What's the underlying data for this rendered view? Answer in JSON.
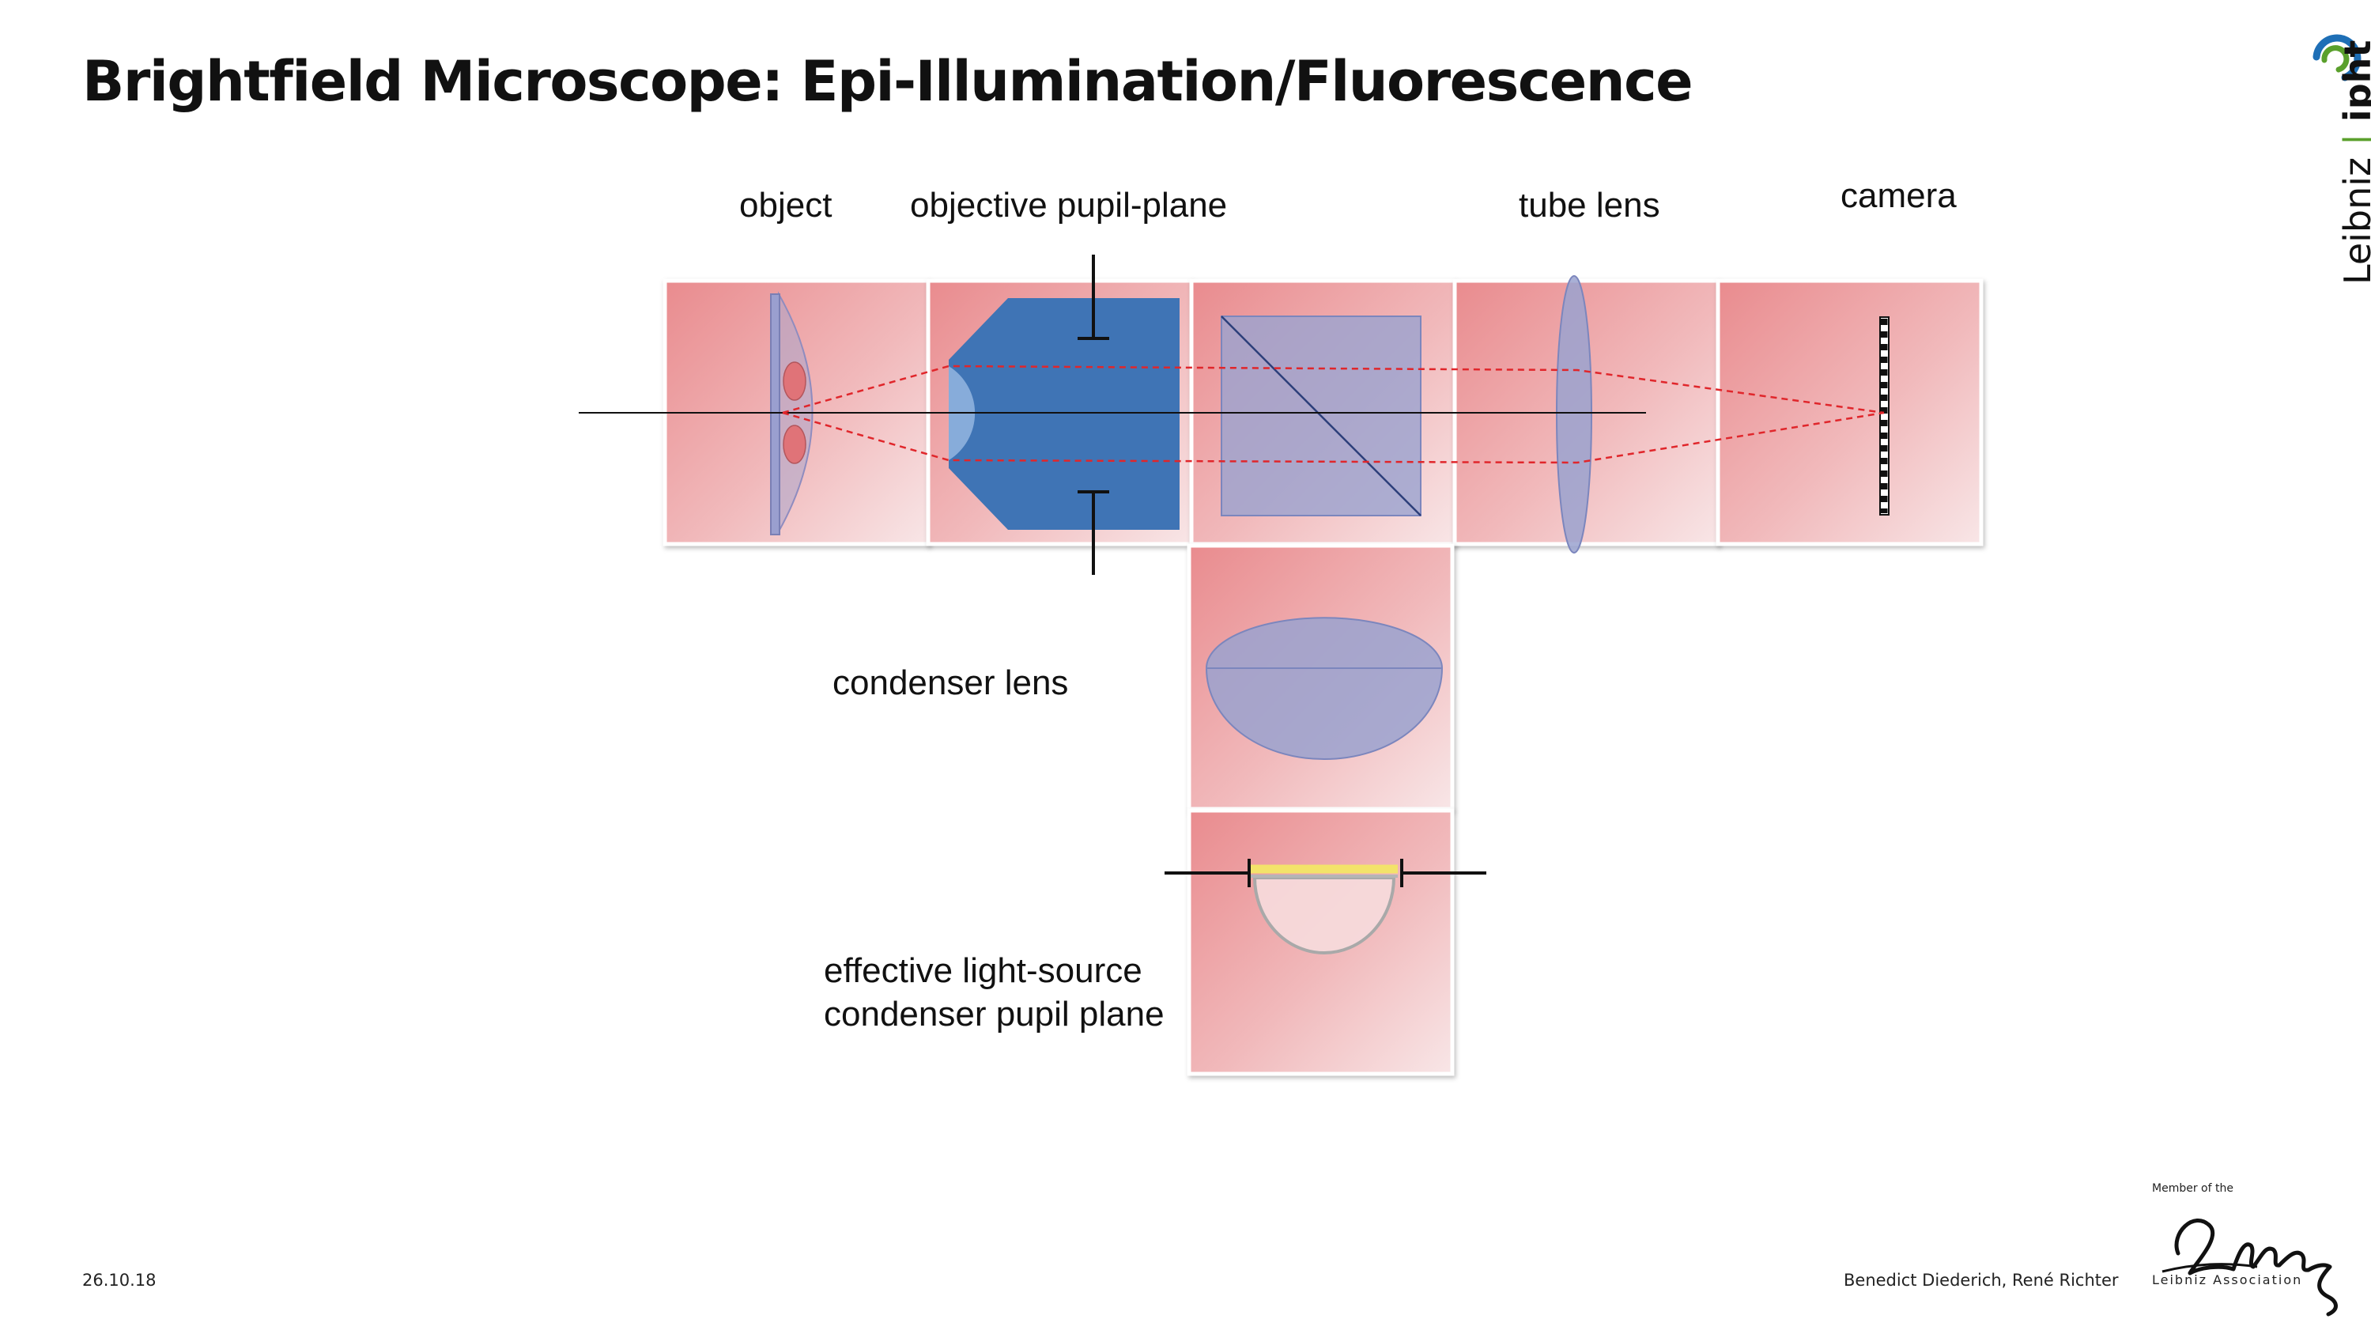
{
  "slide": {
    "title": "Brightfield Microscope: Epi-Illumination/Fluorescence",
    "date": "26.10.18",
    "authors": "Benedict Diederich, René Richter"
  },
  "labels": {
    "object": "object",
    "objective_pupil_plane": "objective pupil-plane",
    "tube_lens": "tube lens",
    "camera": "camera",
    "condenser_lens": "condenser lens",
    "light_source_line1": "effective light-source",
    "light_source_line2": "condenser pupil plane"
  },
  "logos": {
    "ipht_word1": "Leibniz",
    "ipht_separator": "|",
    "ipht_word2": "ipht",
    "leibniz_member": "Member of the",
    "leibniz_association": "Leibniz Association"
  },
  "colors": {
    "panel_pink": "#e98b8e",
    "panel_light": "#f8e6e7",
    "objective_blue": "#3f74b5",
    "lens_lavender": "#9aa2cf",
    "ray_red": "#e0262b",
    "source_yellow": "#f3e36a",
    "ipht_green": "#5aa02c",
    "ipht_blue": "#1e6fb6"
  }
}
